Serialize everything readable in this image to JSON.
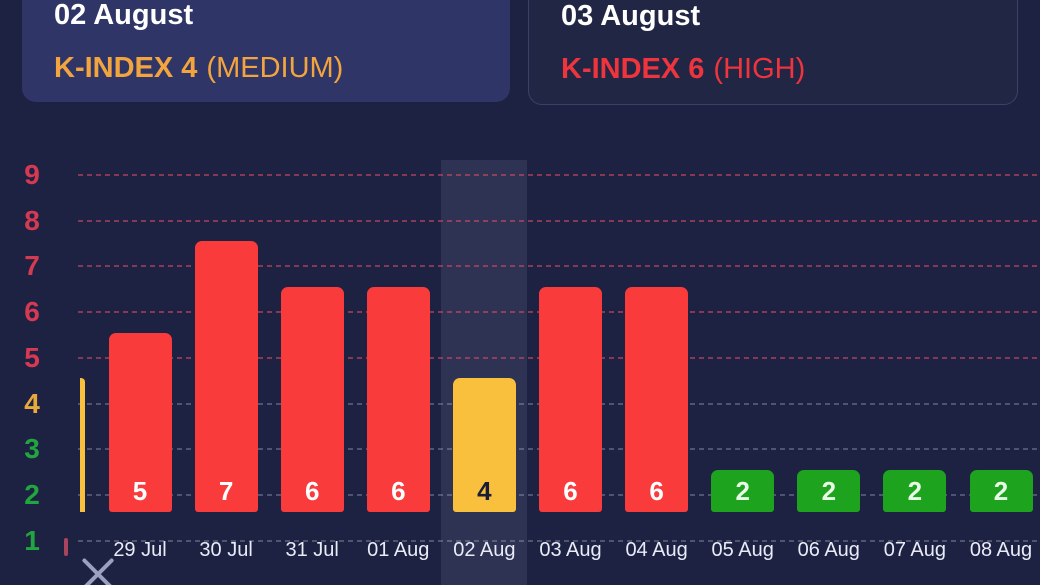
{
  "cards": [
    {
      "title": "02 August",
      "kindex": "K-INDEX 4",
      "level": "(MEDIUM)",
      "severity": "medium"
    },
    {
      "title": "03 August",
      "kindex": "K-INDEX 6",
      "level": "(HIGH)",
      "severity": "high"
    }
  ],
  "chart_data": {
    "type": "bar",
    "categories": [
      "",
      "29 Jul",
      "30 Jul",
      "31 Jul",
      "01 Aug",
      "02 Aug",
      "03 Aug",
      "04 Aug",
      "05 Aug",
      "06 Aug",
      "07 Aug",
      "08 Aug"
    ],
    "values": [
      4,
      5,
      7,
      6,
      6,
      4,
      6,
      6,
      2,
      2,
      2,
      2
    ],
    "first_bar_clipped_at_left_edge": true,
    "highlighted_index": 5,
    "ylim": [
      1,
      9
    ],
    "yticks": [
      1,
      2,
      3,
      4,
      5,
      6,
      7,
      8,
      9
    ],
    "grid": "horizontal dashed",
    "legend": "none",
    "severity_rule": {
      "low": "K 1-3 green",
      "medium": "K 4 yellow",
      "high": "K 5-9 red"
    }
  },
  "colors": {
    "background": "#1e2242",
    "card_selected_bg": "#2f3566",
    "card_border": "#3a4168",
    "kindex_orange": "#f2a43e",
    "kindex_red": "#ee343d",
    "bar_high": "#fa3b3c",
    "bar_medium": "#f9c03e",
    "bar_low": "#1da31d",
    "bar_value_on_high": "#ffffff",
    "bar_value_on_medium": "#191d36",
    "bar_value_on_low": "#e6fae6",
    "axis_red": "#d63a52",
    "axis_orange": "#e8a93c",
    "axis_green": "#21a53e",
    "grid_red": "rgba(236,77,102,0.5)",
    "grid_gray": "rgba(195,200,226,0.3)",
    "xlabel_color": "#e9ecf7",
    "highlight_band": "rgba(216,224,255,0.09)"
  },
  "icons": {
    "close_icon": "x-cross"
  }
}
